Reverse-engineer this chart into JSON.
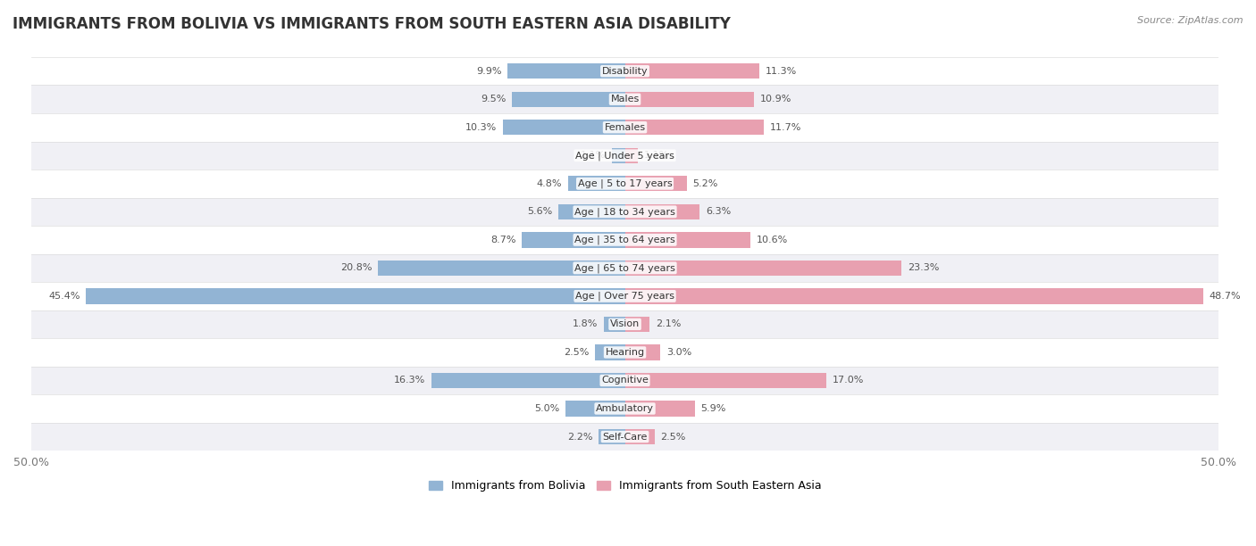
{
  "title": "IMMIGRANTS FROM BOLIVIA VS IMMIGRANTS FROM SOUTH EASTERN ASIA DISABILITY",
  "source": "Source: ZipAtlas.com",
  "categories": [
    "Disability",
    "Males",
    "Females",
    "Age | Under 5 years",
    "Age | 5 to 17 years",
    "Age | 18 to 34 years",
    "Age | 35 to 64 years",
    "Age | 65 to 74 years",
    "Age | Over 75 years",
    "Vision",
    "Hearing",
    "Cognitive",
    "Ambulatory",
    "Self-Care"
  ],
  "bolivia_values": [
    9.9,
    9.5,
    10.3,
    1.1,
    4.8,
    5.6,
    8.7,
    20.8,
    45.4,
    1.8,
    2.5,
    16.3,
    5.0,
    2.2
  ],
  "sea_values": [
    11.3,
    10.9,
    11.7,
    1.1,
    5.2,
    6.3,
    10.6,
    23.3,
    48.7,
    2.1,
    3.0,
    17.0,
    5.9,
    2.5
  ],
  "bolivia_color": "#92b4d4",
  "sea_color": "#e8a0b0",
  "bolivia_label": "Immigrants from Bolivia",
  "sea_label": "Immigrants from South Eastern Asia",
  "axis_max": 50.0,
  "bar_height": 0.55,
  "bg_row_even": "#f0f0f5",
  "bg_row_odd": "#ffffff",
  "title_fontsize": 12,
  "label_fontsize": 9,
  "value_fontsize": 8,
  "category_fontsize": 8
}
